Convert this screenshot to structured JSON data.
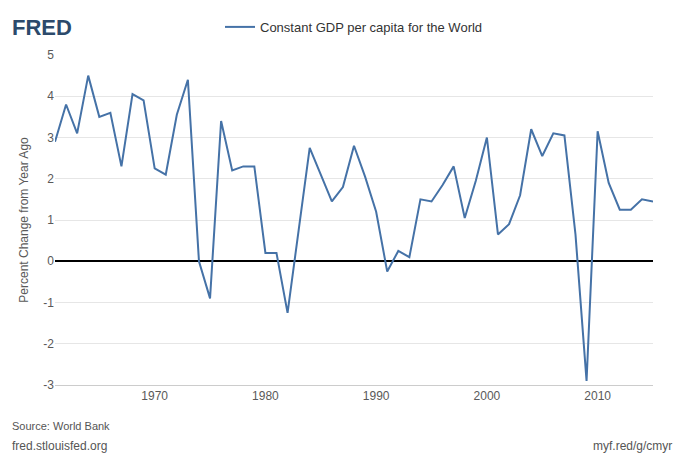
{
  "chart_data": {
    "type": "line",
    "ylabel": "Percent Change from Year Ago",
    "x": [
      1961,
      1962,
      1963,
      1964,
      1965,
      1966,
      1967,
      1968,
      1969,
      1970,
      1971,
      1972,
      1973,
      1974,
      1975,
      1976,
      1977,
      1978,
      1979,
      1980,
      1981,
      1982,
      1983,
      1984,
      1985,
      1986,
      1987,
      1988,
      1989,
      1990,
      1991,
      1992,
      1993,
      1994,
      1995,
      1996,
      1997,
      1998,
      1999,
      2000,
      2001,
      2002,
      2003,
      2004,
      2005,
      2006,
      2007,
      2008,
      2009,
      2010,
      2011,
      2012,
      2013,
      2014,
      2015
    ],
    "series": [
      {
        "name": "Constant GDP per capita for the World",
        "color": "#4572a7",
        "values": [
          2.9,
          3.8,
          3.1,
          4.5,
          3.5,
          3.6,
          2.3,
          4.05,
          3.9,
          2.25,
          2.1,
          3.55,
          4.4,
          0.0,
          -0.9,
          3.4,
          2.2,
          2.3,
          2.3,
          0.2,
          0.2,
          -1.25,
          0.75,
          2.75,
          2.1,
          1.45,
          1.8,
          2.8,
          2.05,
          1.2,
          -0.25,
          0.25,
          0.1,
          1.5,
          1.45,
          1.85,
          2.3,
          1.05,
          1.95,
          3.0,
          0.65,
          0.9,
          1.6,
          3.2,
          2.55,
          3.1,
          3.05,
          0.65,
          -2.9,
          3.15,
          1.9,
          1.25,
          1.25,
          1.5,
          1.45
        ]
      }
    ],
    "xlim": [
      1961,
      2015
    ],
    "ylim": [
      -3,
      5
    ],
    "xticks": [
      1970,
      1980,
      1990,
      2000,
      2010
    ],
    "yticks": [
      -3,
      -2,
      -1,
      0,
      1,
      2,
      3,
      4,
      5
    ],
    "grid": true,
    "legend": "top",
    "annotations": [
      "FRED",
      "Source: World Bank",
      "fred.stlouisfed.org",
      "myf.red/g/cmyr"
    ]
  }
}
